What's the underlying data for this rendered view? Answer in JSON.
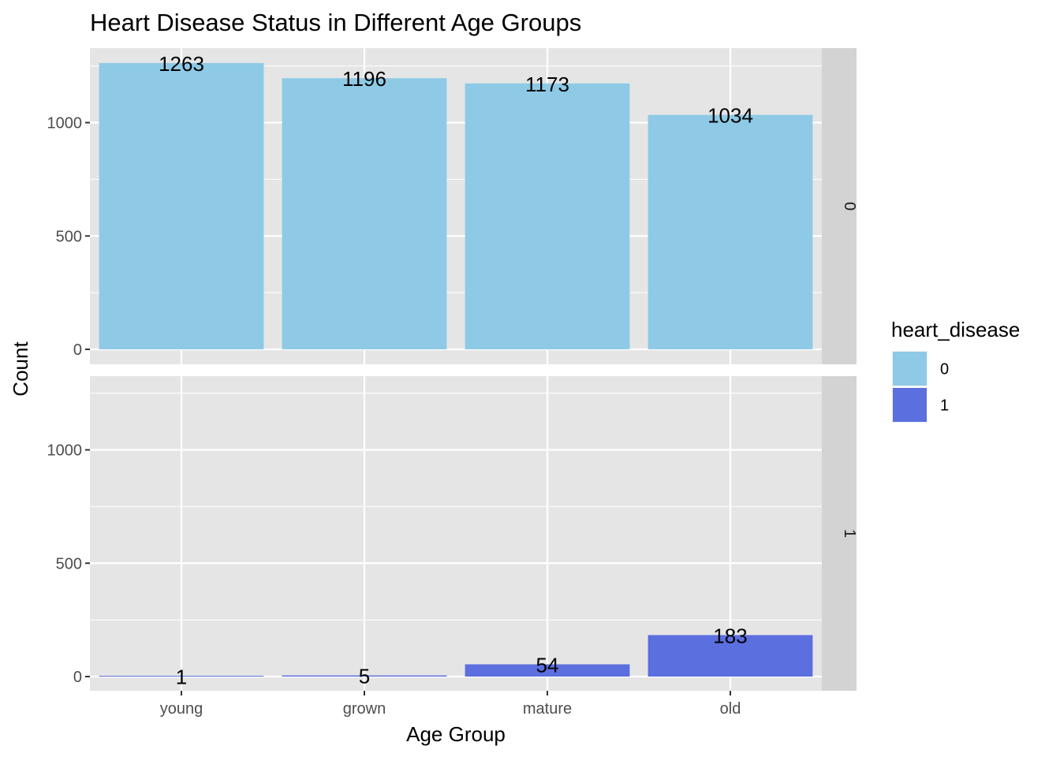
{
  "chart_data": {
    "type": "bar",
    "title": "Heart Disease Status in Different Age Groups",
    "xlabel": "Age Group",
    "ylabel": "Count",
    "categories": [
      "young",
      "grown",
      "mature",
      "old"
    ],
    "ylim": [
      0,
      1300
    ],
    "yticks": [
      0,
      500,
      1000
    ],
    "grid": true,
    "legend": {
      "title": "heart_disease",
      "position": "right",
      "entries": [
        "0",
        "1"
      ]
    },
    "facets": [
      {
        "strip_label": "0",
        "series_name": "0",
        "color": "#8ecae6",
        "values": [
          1263,
          1196,
          1173,
          1034
        ],
        "labels": [
          "1263",
          "1196",
          "1173",
          "1034"
        ]
      },
      {
        "strip_label": "1",
        "series_name": "1",
        "color": "#5b6fdf",
        "values": [
          1,
          5,
          54,
          183
        ],
        "labels": [
          "1",
          "5",
          "54",
          "183"
        ]
      }
    ],
    "colors": {
      "panel_background": "#e5e5e5",
      "grid_line": "#ffffff",
      "strip_background": "#d3d3d3",
      "tick_text": "#4d4d4d"
    }
  }
}
